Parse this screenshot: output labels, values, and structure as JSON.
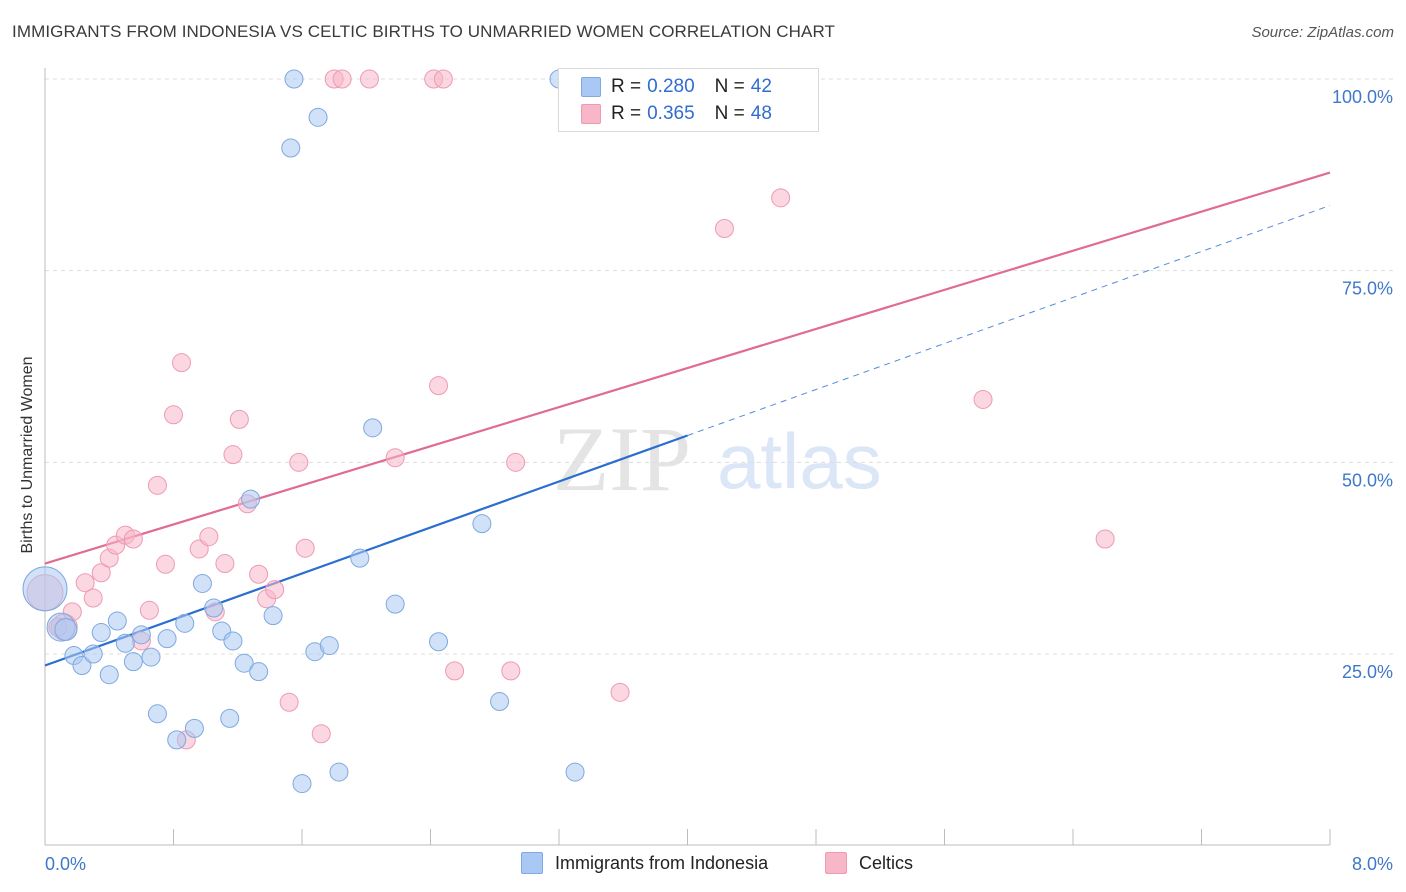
{
  "title": "IMMIGRANTS FROM INDONESIA VS CELTIC BIRTHS TO UNMARRIED WOMEN CORRELATION CHART",
  "source": "Source: ZipAtlas.com",
  "watermark": {
    "zip": "ZIP",
    "atlas": "atlas"
  },
  "colors": {
    "blue_fill": "#a9c8f3",
    "blue_stroke": "#7fa9e0",
    "blue_line": "#2a6fd0",
    "pink_fill": "#f7b7c9",
    "pink_stroke": "#ee9ab3",
    "pink_line": "#e06b93",
    "axis_text": "#3f78c9",
    "grid": "#dddddd"
  },
  "legend": {
    "blue": {
      "r_label": "R =",
      "r_value": "0.280",
      "n_label": "N =",
      "n_value": "42"
    },
    "pink": {
      "r_label": "R =",
      "r_value": "0.365",
      "n_label": "N =",
      "n_value": "48"
    }
  },
  "bottom_legend": {
    "blue": "Immigrants from Indonesia",
    "pink": "Celtics"
  },
  "chart_data": {
    "type": "scatter",
    "title": "IMMIGRANTS FROM INDONESIA VS CELTIC BIRTHS TO UNMARRIED WOMEN CORRELATION CHART",
    "xlabel": "",
    "ylabel": "Births to Unmarried Women",
    "xlim": [
      0,
      8
    ],
    "ylim": [
      0,
      105
    ],
    "x_tick_labels": [
      "0.0%",
      "8.0%"
    ],
    "y_ticks": [
      25,
      50,
      75,
      100
    ],
    "y_tick_labels": [
      "25.0%",
      "50.0%",
      "75.0%",
      "100.0%"
    ],
    "grid": true,
    "legend_position": "top-center",
    "series": [
      {
        "name": "Immigrants from Indonesia",
        "r": 0.28,
        "n": 42,
        "trend": {
          "x0": 0,
          "y0": 23.5,
          "x1": 4.0,
          "y1": 53.5,
          "dashed_to_x": 8.0,
          "dashed_to_y": 83.5
        },
        "points": [
          [
            0.0,
            33.5,
            22
          ],
          [
            0.1,
            28.5,
            14
          ],
          [
            0.13,
            28.2,
            11
          ],
          [
            0.18,
            24.8,
            9
          ],
          [
            0.23,
            23.5,
            9
          ],
          [
            0.3,
            25,
            9
          ],
          [
            0.35,
            27.8,
            9
          ],
          [
            0.4,
            22.3,
            9
          ],
          [
            0.45,
            29.3,
            9
          ],
          [
            0.5,
            26.4,
            9
          ],
          [
            0.55,
            24,
            9
          ],
          [
            0.6,
            27.5,
            9
          ],
          [
            0.66,
            24.6,
            9
          ],
          [
            0.7,
            17.2,
            9
          ],
          [
            0.76,
            27,
            9
          ],
          [
            0.82,
            13.8,
            9
          ],
          [
            0.87,
            29,
            9
          ],
          [
            0.93,
            15.3,
            9
          ],
          [
            0.98,
            34.2,
            9
          ],
          [
            1.05,
            31,
            9
          ],
          [
            1.1,
            28,
            9
          ],
          [
            1.15,
            16.6,
            9
          ],
          [
            1.17,
            26.7,
            9
          ],
          [
            1.24,
            23.8,
            9
          ],
          [
            1.28,
            45.2,
            9
          ],
          [
            1.33,
            22.7,
            9
          ],
          [
            1.42,
            30,
            9
          ],
          [
            1.53,
            91,
            9
          ],
          [
            1.55,
            100,
            9
          ],
          [
            1.6,
            8.1,
            9
          ],
          [
            1.7,
            95,
            9
          ],
          [
            1.68,
            25.3,
            9
          ],
          [
            1.77,
            26.1,
            9
          ],
          [
            1.83,
            9.6,
            9
          ],
          [
            1.96,
            37.5,
            9
          ],
          [
            2.04,
            54.5,
            9
          ],
          [
            2.18,
            31.5,
            9
          ],
          [
            2.45,
            26.6,
            9
          ],
          [
            2.72,
            42,
            9
          ],
          [
            2.83,
            18.8,
            9
          ],
          [
            3.2,
            100,
            9
          ],
          [
            3.3,
            9.6,
            9
          ]
        ]
      },
      {
        "name": "Celtics",
        "r": 0.365,
        "n": 48,
        "trend": {
          "x0": 0,
          "y0": 36.8,
          "x1": 8.0,
          "y1": 87.8
        },
        "points": [
          [
            0.0,
            33,
            18
          ],
          [
            0.12,
            28.5,
            13
          ],
          [
            0.17,
            30.5,
            9
          ],
          [
            0.25,
            34.3,
            9
          ],
          [
            0.3,
            32.3,
            9
          ],
          [
            0.35,
            35.6,
            9
          ],
          [
            0.4,
            37.5,
            9
          ],
          [
            0.44,
            39.2,
            9
          ],
          [
            0.5,
            40.5,
            9
          ],
          [
            0.55,
            40,
            9
          ],
          [
            0.6,
            26.7,
            9
          ],
          [
            0.65,
            30.7,
            9
          ],
          [
            0.7,
            47,
            9
          ],
          [
            0.75,
            36.7,
            9
          ],
          [
            0.8,
            56.2,
            9
          ],
          [
            0.85,
            63,
            9
          ],
          [
            0.88,
            13.8,
            9
          ],
          [
            0.96,
            38.7,
            9
          ],
          [
            1.02,
            40.3,
            9
          ],
          [
            1.06,
            30.5,
            9
          ],
          [
            1.12,
            36.8,
            9
          ],
          [
            1.17,
            51,
            9
          ],
          [
            1.21,
            55.6,
            9
          ],
          [
            1.26,
            44.6,
            9
          ],
          [
            1.33,
            35.4,
            9
          ],
          [
            1.38,
            32.2,
            9
          ],
          [
            1.43,
            33.4,
            9
          ],
          [
            1.52,
            18.7,
            9
          ],
          [
            1.58,
            50,
            9
          ],
          [
            1.62,
            38.8,
            9
          ],
          [
            1.72,
            14.6,
            9
          ],
          [
            1.8,
            100,
            9
          ],
          [
            1.85,
            100,
            9
          ],
          [
            2.02,
            100,
            9
          ],
          [
            2.18,
            50.6,
            9
          ],
          [
            2.42,
            100,
            9
          ],
          [
            2.45,
            60,
            9
          ],
          [
            2.48,
            100,
            9
          ],
          [
            2.55,
            22.8,
            9
          ],
          [
            2.9,
            22.8,
            9
          ],
          [
            2.93,
            50,
            9
          ],
          [
            3.3,
            100,
            9
          ],
          [
            3.58,
            20,
            9
          ],
          [
            4.23,
            80.5,
            9
          ],
          [
            4.58,
            84.5,
            9
          ],
          [
            5.84,
            58.2,
            9
          ],
          [
            6.6,
            40,
            9
          ],
          [
            0.08,
            28.5,
            9
          ]
        ]
      }
    ]
  }
}
